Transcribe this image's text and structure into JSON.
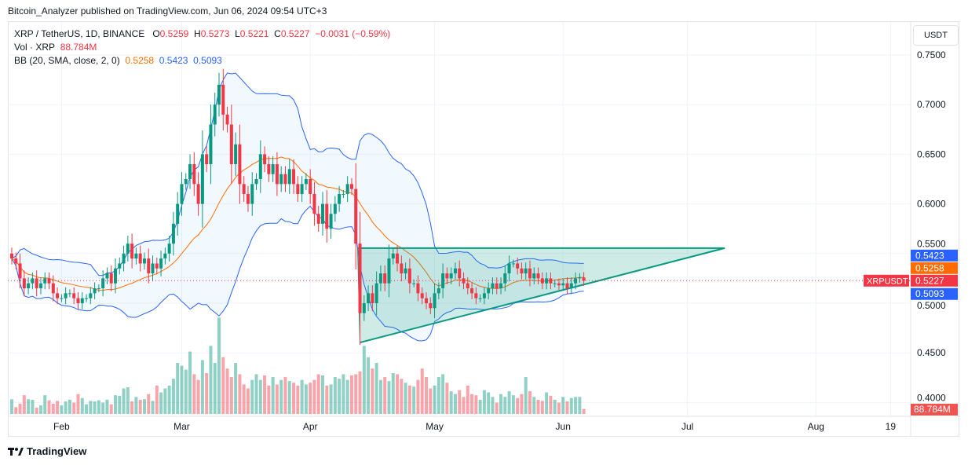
{
  "header": {
    "published": "Bitcoin_Analyzer published on TradingView.com, Jun 06, 2024 09:54 UTC+3"
  },
  "legend": {
    "symbol": "XRP / TetherUS, 1D, BINANCE",
    "o_label": "O",
    "o": "0.5259",
    "h_label": "H",
    "h": "0.5273",
    "l_label": "L",
    "l": "0.5221",
    "c_label": "C",
    "c": "0.5227",
    "change": "−0.0031 (−0.59%)",
    "vol_label": "Vol · XRP",
    "vol": "88.784M",
    "bb_label": "BB (20, SMA, close, 2, 0)",
    "bb_basis": "0.5258",
    "bb_upper": "0.5423",
    "bb_lower": "0.5093"
  },
  "currency_button": "USDT",
  "footer": {
    "brand": "TradingView"
  },
  "colors": {
    "up": "#089981",
    "down": "#f23645",
    "bb_band": "#2962ff",
    "bb_basis": "#ff6d00",
    "pattern": "#089981"
  },
  "chart_data": {
    "type": "candlestick",
    "title": "XRP / TetherUS, 1D, BINANCE",
    "start_date": "2024-01-20",
    "end_date": "2024-06-06",
    "ylim": [
      0.39,
      0.76
    ],
    "y_ticks": [
      "0.7500",
      "0.7000",
      "0.6500",
      "0.6000",
      "0.5500",
      "0.5000",
      "0.4500",
      "0.4000"
    ],
    "x_ticks": [
      "Feb",
      "Mar",
      "Apr",
      "May",
      "Jun",
      "Jul",
      "Aug",
      "19"
    ],
    "grid": true,
    "closes": [
      0.545,
      0.54,
      0.525,
      0.515,
      0.52,
      0.525,
      0.515,
      0.52,
      0.525,
      0.52,
      0.51,
      0.505,
      0.505,
      0.51,
      0.51,
      0.505,
      0.5,
      0.505,
      0.505,
      0.51,
      0.515,
      0.515,
      0.525,
      0.53,
      0.52,
      0.535,
      0.54,
      0.55,
      0.56,
      0.545,
      0.55,
      0.54,
      0.545,
      0.53,
      0.54,
      0.535,
      0.545,
      0.55,
      0.56,
      0.58,
      0.6,
      0.62,
      0.625,
      0.64,
      0.62,
      0.6,
      0.65,
      0.64,
      0.68,
      0.7,
      0.72,
      0.69,
      0.68,
      0.64,
      0.66,
      0.62,
      0.61,
      0.6,
      0.62,
      0.625,
      0.65,
      0.64,
      0.63,
      0.64,
      0.62,
      0.63,
      0.62,
      0.635,
      0.62,
      0.61,
      0.62,
      0.625,
      0.61,
      0.59,
      0.58,
      0.6,
      0.575,
      0.59,
      0.6,
      0.61,
      0.61,
      0.62,
      0.615,
      0.56,
      0.49,
      0.5,
      0.51,
      0.5,
      0.52,
      0.53,
      0.52,
      0.545,
      0.55,
      0.54,
      0.53,
      0.535,
      0.52,
      0.52,
      0.51,
      0.505,
      0.5,
      0.495,
      0.51,
      0.515,
      0.53,
      0.525,
      0.53,
      0.535,
      0.525,
      0.52,
      0.515,
      0.51,
      0.505,
      0.505,
      0.51,
      0.515,
      0.52,
      0.515,
      0.52,
      0.53,
      0.54,
      0.54,
      0.535,
      0.53,
      0.535,
      0.525,
      0.53,
      0.525,
      0.52,
      0.525,
      0.52,
      0.52,
      0.518,
      0.52,
      0.515,
      0.52,
      0.525,
      0.5259,
      0.5227
    ],
    "volumes_m": [
      260,
      120,
      180,
      330,
      260,
      250,
      110,
      150,
      330,
      240,
      180,
      230,
      150,
      220,
      250,
      200,
      350,
      280,
      170,
      230,
      220,
      240,
      200,
      250,
      170,
      330,
      320,
      450,
      470,
      220,
      300,
      250,
      260,
      350,
      230,
      500,
      380,
      450,
      500,
      620,
      900,
      850,
      780,
      1100,
      700,
      600,
      950,
      720,
      1200,
      900,
      1700,
      1000,
      800,
      650,
      900,
      700,
      520,
      450,
      600,
      700,
      600,
      680,
      500,
      650,
      520,
      600,
      650,
      580,
      550,
      500,
      600,
      520,
      550,
      600,
      700,
      680,
      500,
      520,
      650,
      620,
      700,
      600,
      680,
      700,
      750,
      1200,
      1000,
      800,
      900,
      600,
      650,
      580,
      720,
      700,
      620,
      550,
      500,
      480,
      600,
      800,
      650,
      450,
      500,
      650,
      700,
      550,
      400,
      350,
      420,
      300,
      500,
      350,
      330,
      250,
      420,
      380,
      300,
      200,
      350,
      300,
      400,
      330,
      280,
      350,
      650,
      400,
      300,
      250,
      230,
      380,
      320,
      250,
      200,
      300,
      220,
      280,
      300,
      300,
      88.784
    ],
    "pattern": {
      "type": "ascending-triangle",
      "resistance": 0.5555,
      "support_start": 0.4604,
      "start_date": "2024-04-13",
      "apex_date": "2024-07-10"
    },
    "last_price_label": "XRPUSDT",
    "axis_labels": {
      "bb_upper": "0.5423",
      "bb_basis": "0.5258",
      "last": "0.5227",
      "bb_lower": "0.5093",
      "volume": "88.784M"
    }
  }
}
